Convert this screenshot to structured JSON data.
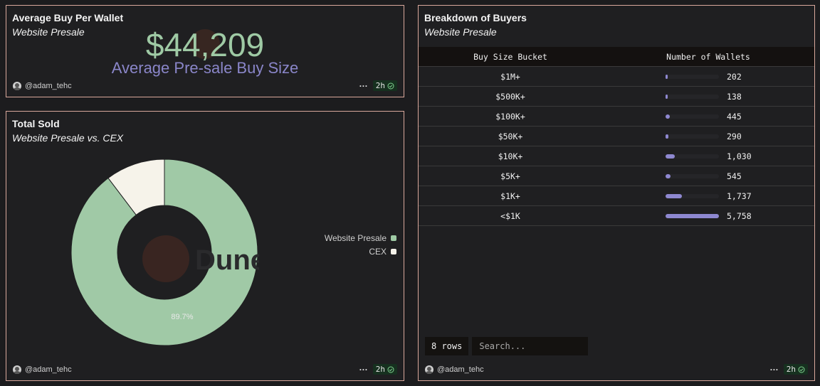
{
  "average_panel": {
    "title": "Average Buy Per Wallet",
    "subtitle": "Website Presale",
    "value": "$44,209",
    "label": "Average Pre-sale Buy Size",
    "author": "@adam_tehc",
    "more": "···",
    "refresh": "2h"
  },
  "total_panel": {
    "title": "Total Sold",
    "subtitle": "Website Presale vs. CEX",
    "author": "@adam_tehc",
    "more": "···",
    "refresh": "2h",
    "watermark": "Dune",
    "slice_label": "89.7%",
    "legend": [
      {
        "label": "Website Presale",
        "color": "#9fcaa5"
      },
      {
        "label": "CEX",
        "color": "#f5f2ea"
      }
    ]
  },
  "chart_data": {
    "type": "pie",
    "donut": true,
    "categories": [
      "Website Presale",
      "CEX"
    ],
    "values": [
      89.7,
      10.3
    ],
    "colors": [
      "#a0c9a6",
      "#f6f3ea"
    ],
    "title": "Total Sold",
    "subtitle": "Website Presale vs. CEX",
    "data_labels": [
      "89.7%",
      ""
    ],
    "legend_position": "right"
  },
  "breakdown_panel": {
    "title": "Breakdown of Buyers",
    "subtitle": "Website Presale",
    "columns": [
      "Buy Size Bucket",
      "Number of Wallets"
    ],
    "rows": [
      {
        "bucket": "$1M+",
        "wallets": "202",
        "value": 202
      },
      {
        "bucket": "$500K+",
        "wallets": "138",
        "value": 138
      },
      {
        "bucket": "$100K+",
        "wallets": "445",
        "value": 445
      },
      {
        "bucket": "$50K+",
        "wallets": "290",
        "value": 290
      },
      {
        "bucket": "$10K+",
        "wallets": "1,030",
        "value": 1030
      },
      {
        "bucket": "$5K+",
        "wallets": "545",
        "value": 545
      },
      {
        "bucket": "$1K+",
        "wallets": "1,737",
        "value": 1737
      },
      {
        "bucket": "<$1K",
        "wallets": "5,758",
        "value": 5758
      }
    ],
    "row_count": "8 rows",
    "search_placeholder": "Search...",
    "author": "@adam_tehc",
    "more": "···",
    "refresh": "2h"
  }
}
